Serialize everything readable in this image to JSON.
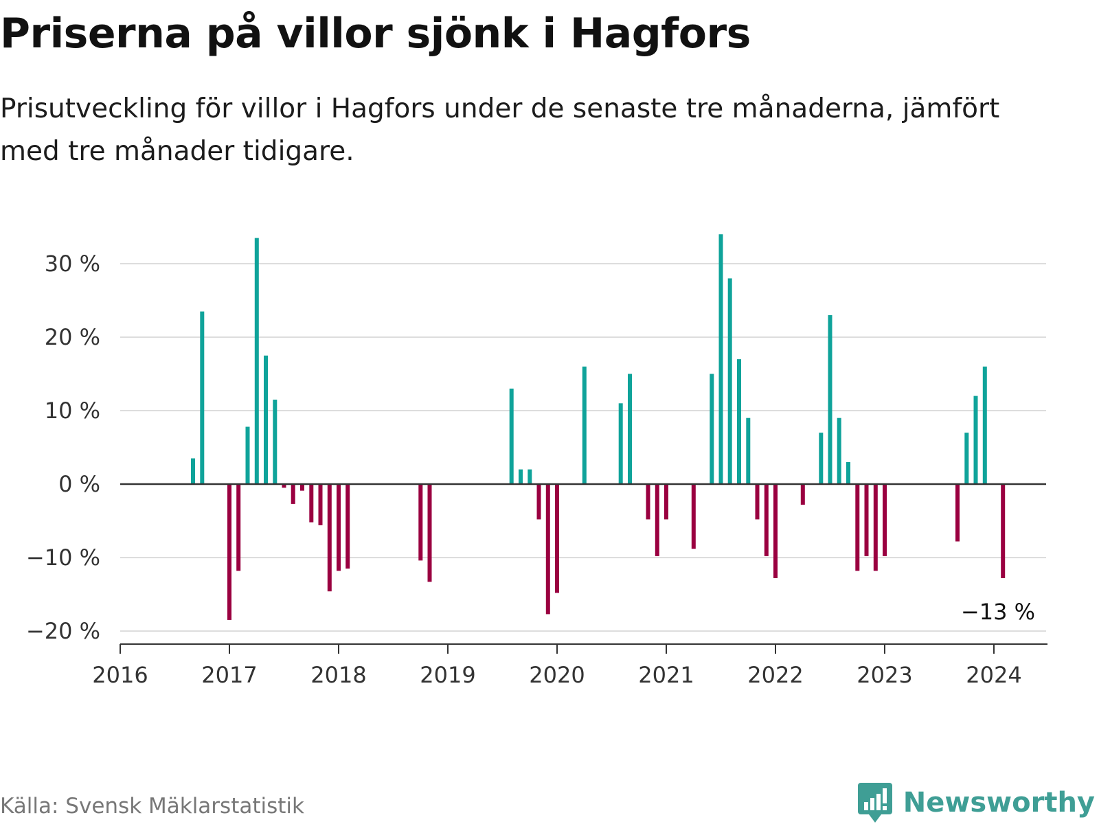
{
  "header": {
    "title": "Priserna på villor sjönk i Hagfors",
    "subtitle": "Prisutveckling för villor i Hagfors under de senaste tre månaderna, jämfört med tre månader tidigare."
  },
  "footer": {
    "source": "Källa: Svensk Mäklarstatistik",
    "brand": "Newsworthy"
  },
  "colors": {
    "positive": "#0fa39a",
    "negative": "#9a0040",
    "grid": "#dddddd",
    "axis": "#333333",
    "brand": "#3f9e95"
  },
  "chart_data": {
    "type": "bar",
    "title": "Priserna på villor sjönk i Hagfors",
    "xlabel": "",
    "ylabel": "",
    "ylim": [
      -20,
      35
    ],
    "xlim": [
      2016,
      2024.5
    ],
    "yticks": [
      {
        "value": 30,
        "label": "30 %"
      },
      {
        "value": 20,
        "label": "20 %"
      },
      {
        "value": 10,
        "label": "10 %"
      },
      {
        "value": 0,
        "label": "0 %"
      },
      {
        "value": -10,
        "label": "−10 %"
      },
      {
        "value": -20,
        "label": "−20 %"
      }
    ],
    "xticks": [
      {
        "value": 2016,
        "label": "2016"
      },
      {
        "value": 2017,
        "label": "2017"
      },
      {
        "value": 2018,
        "label": "2018"
      },
      {
        "value": 2019,
        "label": "2019"
      },
      {
        "value": 2020,
        "label": "2020"
      },
      {
        "value": 2021,
        "label": "2021"
      },
      {
        "value": 2022,
        "label": "2022"
      },
      {
        "value": 2023,
        "label": "2023"
      },
      {
        "value": 2024,
        "label": "2024"
      }
    ],
    "grid": true,
    "last_value_label": "−13 %",
    "series": [
      {
        "name": "Prisutveckling",
        "points": [
          {
            "x": "2016-09",
            "y": 3.5
          },
          {
            "x": "2016-10",
            "y": 23.5
          },
          {
            "x": "2017-01",
            "y": -18.5
          },
          {
            "x": "2017-02",
            "y": -11.8
          },
          {
            "x": "2017-03",
            "y": 7.8
          },
          {
            "x": "2017-04",
            "y": 33.5
          },
          {
            "x": "2017-05",
            "y": 17.5
          },
          {
            "x": "2017-06",
            "y": 11.5
          },
          {
            "x": "2017-07",
            "y": -0.5
          },
          {
            "x": "2017-08",
            "y": -2.7
          },
          {
            "x": "2017-09",
            "y": -0.9
          },
          {
            "x": "2017-10",
            "y": -5.2
          },
          {
            "x": "2017-11",
            "y": -5.6
          },
          {
            "x": "2017-12",
            "y": -14.6
          },
          {
            "x": "2018-01",
            "y": -11.8
          },
          {
            "x": "2018-02",
            "y": -11.5
          },
          {
            "x": "2018-10",
            "y": -10.4
          },
          {
            "x": "2018-11",
            "y": -13.3
          },
          {
            "x": "2019-08",
            "y": 13.0
          },
          {
            "x": "2019-09",
            "y": 2.0
          },
          {
            "x": "2019-10",
            "y": 2.0
          },
          {
            "x": "2019-11",
            "y": -4.8
          },
          {
            "x": "2019-12",
            "y": -17.7
          },
          {
            "x": "2020-01",
            "y": -14.8
          },
          {
            "x": "2020-04",
            "y": 16.0
          },
          {
            "x": "2020-08",
            "y": 11.0
          },
          {
            "x": "2020-09",
            "y": 15.0
          },
          {
            "x": "2020-11",
            "y": -4.8
          },
          {
            "x": "2020-12",
            "y": -9.8
          },
          {
            "x": "2021-01",
            "y": -4.8
          },
          {
            "x": "2021-04",
            "y": -8.8
          },
          {
            "x": "2021-06",
            "y": 15.0
          },
          {
            "x": "2021-07",
            "y": 34.0
          },
          {
            "x": "2021-08",
            "y": 28.0
          },
          {
            "x": "2021-09",
            "y": 17.0
          },
          {
            "x": "2021-10",
            "y": 9.0
          },
          {
            "x": "2021-11",
            "y": -4.8
          },
          {
            "x": "2021-12",
            "y": -9.8
          },
          {
            "x": "2022-01",
            "y": -12.8
          },
          {
            "x": "2022-04",
            "y": -2.8
          },
          {
            "x": "2022-06",
            "y": 7.0
          },
          {
            "x": "2022-07",
            "y": 23.0
          },
          {
            "x": "2022-08",
            "y": 9.0
          },
          {
            "x": "2022-09",
            "y": 3.0
          },
          {
            "x": "2022-10",
            "y": -11.8
          },
          {
            "x": "2022-11",
            "y": -9.8
          },
          {
            "x": "2022-12",
            "y": -11.8
          },
          {
            "x": "2023-01",
            "y": -9.8
          },
          {
            "x": "2023-09",
            "y": -7.8
          },
          {
            "x": "2023-10",
            "y": 7.0
          },
          {
            "x": "2023-11",
            "y": 12.0
          },
          {
            "x": "2023-12",
            "y": 16.0
          },
          {
            "x": "2024-02",
            "y": -12.8
          }
        ]
      }
    ]
  }
}
